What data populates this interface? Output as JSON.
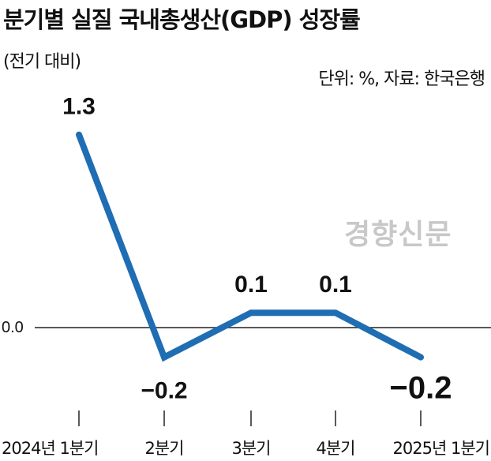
{
  "chart_data": {
    "type": "line",
    "title": "분기별 실질 국내총생산(GDP) 성장률",
    "subtitle": "(전기 대비)",
    "source": "단위: %, 자료: 한국은행",
    "watermark": "경향신문",
    "categories": [
      "2024년 1분기",
      "2분기",
      "3분기",
      "4분기",
      "2025년 1분기"
    ],
    "values": [
      1.3,
      -0.2,
      0.1,
      0.1,
      -0.2
    ],
    "data_labels": [
      "1.3",
      "−0.2",
      "0.1",
      "0.1",
      "−0.2"
    ],
    "baseline_label": "0.0",
    "line_color": "#1f6db3",
    "xlabel": "",
    "ylabel": ""
  }
}
